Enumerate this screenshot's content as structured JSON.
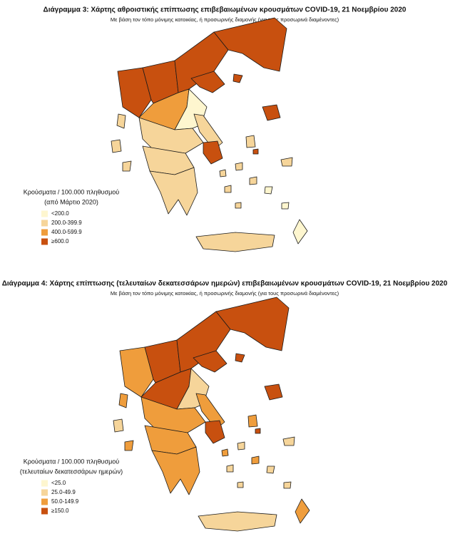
{
  "maps": [
    {
      "title": "Διάγραμμα 3: Χάρτης αθροιστικής επίπτωσης επιβεβαιωμένων κρουσμάτων COVID-19, 21 Νοεμβρίου 2020",
      "subtitle": "Με βάση τον τόπο μόνιμης κατοικίας, ή προσωρινής διαμονής (για τους προσωρινά διαμένοντες)",
      "legend": {
        "title": [
          "Κρούσματα / 100.000 πληθυσμού",
          "(από Μάρτιο 2020)"
        ],
        "items": [
          {
            "label": "<200.0",
            "color": "#fef6cf"
          },
          {
            "label": "200.0-399.9",
            "color": "#f6d59a"
          },
          {
            "label": "400.0-599.9",
            "color": "#ef9d3c"
          },
          {
            "label": "≥600.0",
            "color": "#c8500f"
          }
        ]
      }
    },
    {
      "title": "Διάγραμμα 4: Χάρτης επίπτωσης (τελευταίων δεκατεσσάρων ημερών) επιβεβαιωμένων κρουσμάτων COVID-19, 21 Νοεμβρίου 2020",
      "subtitle": "Με βάση τον τόπο μόνιμης κατοικίας, ή προσωρινής διαμονής (για τους προσωρινά διαμένοντες)",
      "legend": {
        "title": [
          "Κρούσματα / 100.000 πληθυσμού",
          "(τελευταίων δεκατεσσάρων ημερών)"
        ],
        "items": [
          {
            "label": "<25.0",
            "color": "#fef6cf"
          },
          {
            "label": "25.0-49.9",
            "color": "#f6d59a"
          },
          {
            "label": "50.0-149.9",
            "color": "#ef9d3c"
          },
          {
            "label": "≥150.0",
            "color": "#c8500f"
          }
        ]
      }
    }
  ]
}
